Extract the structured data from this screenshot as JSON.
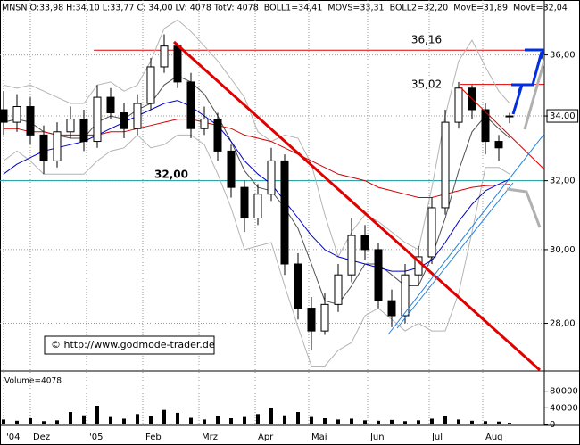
{
  "chart_data": {
    "type": "candlestick",
    "header": "MNSN O:33,98 H:34,10 L:33,77 C: 34,00 LV: 4078 TotV: 4078",
    "x": [
      0,
      5,
      10,
      15,
      20,
      25,
      30,
      35,
      40,
      45,
      50,
      55,
      60,
      65,
      70,
      75,
      80,
      85,
      90,
      95,
      100,
      105,
      110,
      115,
      120,
      125,
      130,
      135,
      140,
      145,
      150,
      155,
      160,
      165,
      170,
      175,
      180,
      185,
      189
    ],
    "xlim": [
      -1.33,
      202
    ],
    "xticks": [
      {
        "value": 0,
        "label": "'04"
      },
      {
        "value": 10,
        "label": "Dez"
      },
      {
        "value": 31,
        "label": "'05"
      },
      {
        "value": 52,
        "label": "Feb"
      },
      {
        "value": 73,
        "label": "Mrz"
      },
      {
        "value": 94,
        "label": "Apr"
      },
      {
        "value": 114,
        "label": "Mai"
      },
      {
        "value": 136,
        "label": "Jun"
      },
      {
        "value": 159,
        "label": "Jul"
      },
      {
        "value": 179,
        "label": "Aug"
      }
    ],
    "open": [
      34.2,
      33.8,
      34.3,
      33.4,
      32.6,
      33.5,
      33.9,
      33.2,
      34.6,
      34.1,
      33.6,
      34.4,
      35.6,
      36.3,
      35.1,
      33.6,
      33.9,
      32.9,
      31.8,
      30.9,
      31.6,
      32.6,
      29.6,
      28.4,
      27.8,
      28.5,
      29.3,
      30.4,
      30.0,
      28.6,
      28.2,
      29.3,
      29.8,
      31.2,
      33.8,
      34.9,
      34.2,
      33.2,
      33.98
    ],
    "high": [
      34.8,
      34.7,
      34.6,
      33.7,
      33.8,
      34.3,
      34.2,
      35.0,
      34.9,
      34.4,
      34.7,
      35.9,
      36.7,
      36.4,
      35.4,
      34.3,
      34.1,
      33.1,
      32.0,
      31.9,
      33.0,
      32.8,
      29.9,
      28.7,
      28.8,
      29.6,
      30.9,
      30.7,
      30.2,
      28.9,
      29.6,
      30.1,
      31.5,
      34.2,
      35.1,
      35.0,
      34.4,
      33.4,
      34.1
    ],
    "low": [
      33.4,
      33.5,
      33.1,
      32.2,
      32.4,
      33.3,
      32.9,
      33.0,
      33.9,
      33.3,
      33.4,
      34.2,
      35.4,
      34.9,
      33.3,
      33.4,
      32.6,
      31.5,
      30.5,
      30.7,
      31.4,
      29.3,
      28.1,
      27.3,
      27.7,
      28.3,
      29.1,
      29.7,
      28.4,
      27.9,
      28.0,
      29.0,
      29.6,
      31.0,
      33.6,
      33.9,
      32.8,
      32.6,
      33.77
    ],
    "close": [
      33.8,
      34.3,
      33.4,
      32.6,
      33.5,
      33.9,
      33.2,
      34.6,
      34.1,
      33.6,
      34.4,
      35.6,
      36.3,
      35.1,
      33.6,
      33.9,
      32.9,
      31.8,
      30.9,
      31.6,
      32.6,
      29.6,
      28.4,
      27.8,
      28.5,
      29.3,
      30.4,
      30.0,
      28.6,
      28.2,
      29.3,
      29.8,
      31.2,
      33.8,
      34.9,
      34.2,
      33.2,
      33.0,
      34.0
    ],
    "up_color": "#ffffff",
    "down_color": "#000000",
    "series": [
      {
        "name": "BOLL1=34,41",
        "color": "#b4b4b4",
        "values": [
          35.0,
          34.9,
          35.0,
          34.8,
          34.6,
          34.4,
          34.4,
          35.0,
          35.1,
          34.8,
          35.0,
          35.8,
          36.9,
          37.2,
          36.8,
          36.3,
          35.8,
          35.2,
          34.6,
          33.5,
          33.2,
          33.4,
          33.3,
          32.5,
          31.0,
          29.8,
          30.5,
          31.0,
          30.8,
          30.5,
          30.2,
          30.0,
          31.8,
          34.0,
          35.8,
          36.5,
          35.6,
          34.8,
          34.41
        ]
      },
      {
        "name": "MOVS=33,31",
        "color": "#505050",
        "values": [
          33.8,
          33.9,
          33.8,
          33.5,
          33.4,
          33.3,
          33.3,
          33.8,
          34.0,
          33.9,
          34.2,
          34.4,
          35.0,
          35.3,
          35.1,
          34.7,
          34.0,
          33.2,
          32.3,
          31.8,
          31.7,
          31.2,
          30.6,
          29.6,
          28.6,
          28.5,
          29.0,
          29.6,
          29.6,
          29.3,
          29.0,
          29.0,
          29.8,
          30.9,
          32.3,
          33.5,
          34.0,
          33.6,
          33.31
        ]
      },
      {
        "name": "BOLL2=32,20",
        "color": "#b4b4b4",
        "values": [
          32.6,
          32.9,
          32.6,
          32.2,
          32.2,
          32.2,
          32.2,
          32.6,
          32.9,
          33.0,
          33.4,
          33.0,
          33.1,
          33.4,
          33.4,
          33.1,
          32.2,
          31.2,
          30.0,
          30.1,
          30.2,
          29.0,
          27.9,
          26.9,
          26.9,
          27.3,
          27.5,
          28.2,
          28.4,
          28.1,
          27.8,
          28.0,
          27.8,
          27.8,
          28.8,
          30.5,
          32.4,
          32.4,
          32.2
        ]
      },
      {
        "name": "MovE=31,89",
        "color": "#d40000",
        "values": [
          33.6,
          33.6,
          33.5,
          33.5,
          33.4,
          33.4,
          33.4,
          33.4,
          33.5,
          33.5,
          33.6,
          33.7,
          33.8,
          33.9,
          33.9,
          33.8,
          33.7,
          33.6,
          33.4,
          33.3,
          33.2,
          33.0,
          32.8,
          32.6,
          32.4,
          32.2,
          32.1,
          32.0,
          31.8,
          31.7,
          31.6,
          31.5,
          31.5,
          31.6,
          31.7,
          31.8,
          31.85,
          31.87,
          31.89
        ]
      },
      {
        "name": "MovE=32,04",
        "color": "#0000c8",
        "values": [
          32.2,
          32.5,
          32.7,
          32.9,
          33.0,
          33.1,
          33.2,
          33.4,
          33.6,
          33.8,
          34.0,
          34.2,
          34.4,
          34.5,
          34.3,
          34.0,
          33.7,
          33.2,
          32.6,
          32.2,
          31.9,
          31.4,
          30.9,
          30.4,
          30.0,
          29.8,
          29.7,
          29.6,
          29.5,
          29.4,
          29.4,
          29.5,
          29.7,
          30.2,
          30.8,
          31.3,
          31.7,
          31.9,
          32.04
        ]
      }
    ],
    "ylim": [
      26.8,
      37.9
    ],
    "log_y": true,
    "yticks": [
      {
        "value": 28,
        "label": "28,00"
      },
      {
        "value": 30,
        "label": "30,00"
      },
      {
        "value": 32,
        "label": "32,00"
      },
      {
        "value": 34,
        "label": "34,00"
      },
      {
        "value": 36,
        "label": "36,00"
      }
    ],
    "grid": true,
    "levels": [
      {
        "value": 36.16,
        "label": "36,16",
        "color": "#e00000"
      },
      {
        "value": 35.02,
        "label": "35,02",
        "color": "#e00000"
      },
      {
        "value": 32,
        "label": "32,00",
        "color": "#1a9a9a"
      }
    ],
    "volume": {
      "label": "Volume=4078",
      "color": "#000000",
      "values": [
        12000,
        9000,
        15000,
        8000,
        10000,
        30000,
        22000,
        45000,
        18000,
        14000,
        25000,
        20000,
        35000,
        28000,
        16000,
        12000,
        20000,
        15000,
        18000,
        25000,
        40000,
        22000,
        30000,
        18000,
        15000,
        12000,
        14000,
        10000,
        9000,
        11000,
        8000,
        10000,
        14000,
        20000,
        12000,
        9000,
        8000,
        7000,
        4078
      ],
      "ylim": [
        0,
        120000
      ],
      "yticks": [
        0,
        40000,
        80000
      ]
    },
    "copyright": "© http://www.godmode-trader.de"
  }
}
